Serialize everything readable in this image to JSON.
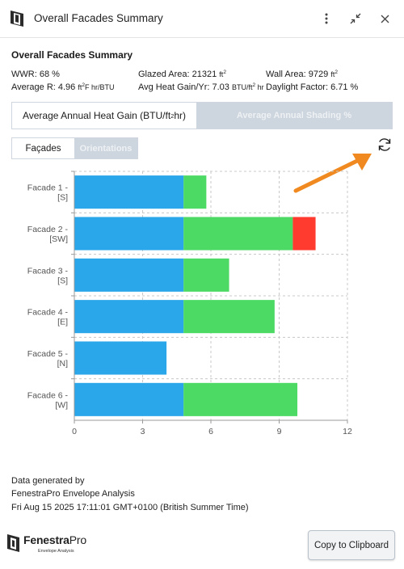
{
  "window": {
    "title": "Overall Facades Summary"
  },
  "summary": {
    "heading": "Overall Facades Summary",
    "wwr": "WWR: 68 %",
    "avg_r_label": "Average R: 4.96 ",
    "avg_r_unit_base": "ft",
    "avg_r_unit_exp": "2",
    "avg_r_unit_tail": "F hr/BTU",
    "glazed_label": "Glazed Area: 21321 ",
    "glazed_unit_base": "ft",
    "glazed_unit_exp": "2",
    "avg_heat_label": "Avg Heat Gain/Yr: 7.03 ",
    "avg_heat_unit_base": "BTU/ft",
    "avg_heat_unit_exp": "2",
    "avg_heat_unit_tail": " hr",
    "wall_label": "Wall Area: 9729 ",
    "wall_unit_base": "ft",
    "wall_unit_exp": "2",
    "daylight": "Daylight Factor: 6.71 %"
  },
  "tabs": {
    "heat_gain_base": "Average Annual Heat Gain (BTU/ft",
    "heat_gain_exp": "2",
    "heat_gain_tail": " hr)",
    "shading": "Average Annual Shading %"
  },
  "segment": {
    "facades": "Façades",
    "orientations": "Orientations"
  },
  "colors": {
    "blue": "#2aa7ea",
    "green": "#4cd964",
    "red": "#ff3b30",
    "arrow": "#f0891f"
  },
  "icons": {
    "refresh": "refresh-icon",
    "more": "more-vertical-icon",
    "minimize": "minimize-icon",
    "close": "close-icon"
  },
  "chart_data": {
    "type": "bar",
    "orientation": "horizontal",
    "stacked": true,
    "categories": [
      [
        "Facade 1 -",
        "[S]"
      ],
      [
        "Facade 2 -",
        "[SW]"
      ],
      [
        "Facade 3 -",
        "[S]"
      ],
      [
        "Facade 4 -",
        "[E]"
      ],
      [
        "Facade 5 -",
        "[N]"
      ],
      [
        "Facade 6 -",
        "[W]"
      ]
    ],
    "series": [
      {
        "color": "#2aa7ea",
        "values": [
          4.8,
          4.8,
          4.8,
          4.8,
          4.05,
          4.8
        ]
      },
      {
        "color": "#4cd964",
        "values": [
          1.0,
          4.8,
          2.0,
          4.0,
          0,
          5.0
        ]
      },
      {
        "color": "#ff3b30",
        "values": [
          0,
          1.0,
          0,
          0,
          0,
          0
        ]
      }
    ],
    "xlim": [
      0,
      12
    ],
    "xticks": [
      0,
      3,
      6,
      9,
      12
    ],
    "grid": true
  },
  "footer": {
    "line1": "Data generated by",
    "line2": "FenestraPro Envelope Analysis",
    "line3": "Fri Aug 15 2025 17:11:01 GMT+0100 (British Summer Time)"
  },
  "logo": {
    "name_a": "Fenestra",
    "name_b": "Pro",
    "tagline": "Envelope Analysis"
  },
  "buttons": {
    "copy": "Copy to Clipboard"
  }
}
